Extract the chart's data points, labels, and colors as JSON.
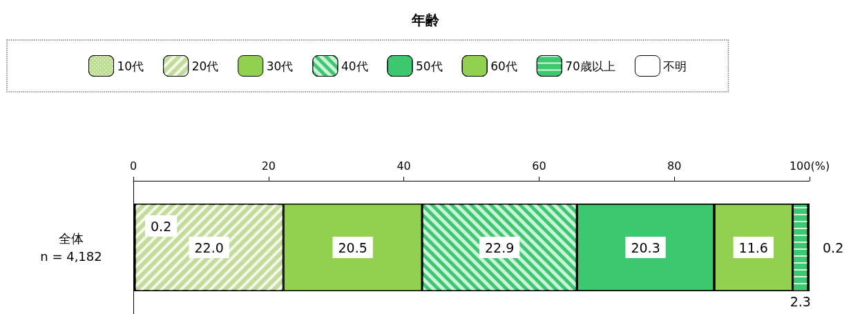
{
  "chart_data": {
    "type": "bar",
    "title": "年齢",
    "orientation": "horizontal",
    "stacked": true,
    "categories": [
      "全体\nn = 4,182"
    ],
    "series": [
      {
        "name": "10代",
        "color": "#b9dc8a",
        "values": [
          0.2
        ],
        "value_labels": [
          "0.2"
        ]
      },
      {
        "name": "20代",
        "color": "#c4dc9a",
        "values": [
          22.0
        ],
        "value_labels": [
          "22.0"
        ]
      },
      {
        "name": "30代",
        "color": "#92d050",
        "values": [
          20.5
        ],
        "value_labels": [
          "20.5"
        ]
      },
      {
        "name": "40代",
        "color": "#3cc86e",
        "values": [
          22.9
        ],
        "value_labels": [
          "22.9"
        ]
      },
      {
        "name": "50代",
        "color": "#3cc86e",
        "values": [
          20.3
        ],
        "value_labels": [
          "20.3"
        ]
      },
      {
        "name": "60代",
        "color": "#92d050",
        "values": [
          11.6
        ],
        "value_labels": [
          "11.6"
        ]
      },
      {
        "name": "70歳以上",
        "color": "#3cc86e",
        "values": [
          2.3
        ],
        "value_labels": [
          "2.3"
        ]
      },
      {
        "name": "不明",
        "color": "#ffffff",
        "values": [
          0.2
        ],
        "value_labels": [
          "0.2"
        ]
      }
    ],
    "xlim": [
      0,
      100
    ],
    "xticks": [
      0,
      20,
      40,
      60,
      80,
      {
        "value": 100,
        "label": "100(%)"
      }
    ],
    "legend": "top",
    "grid": false
  }
}
